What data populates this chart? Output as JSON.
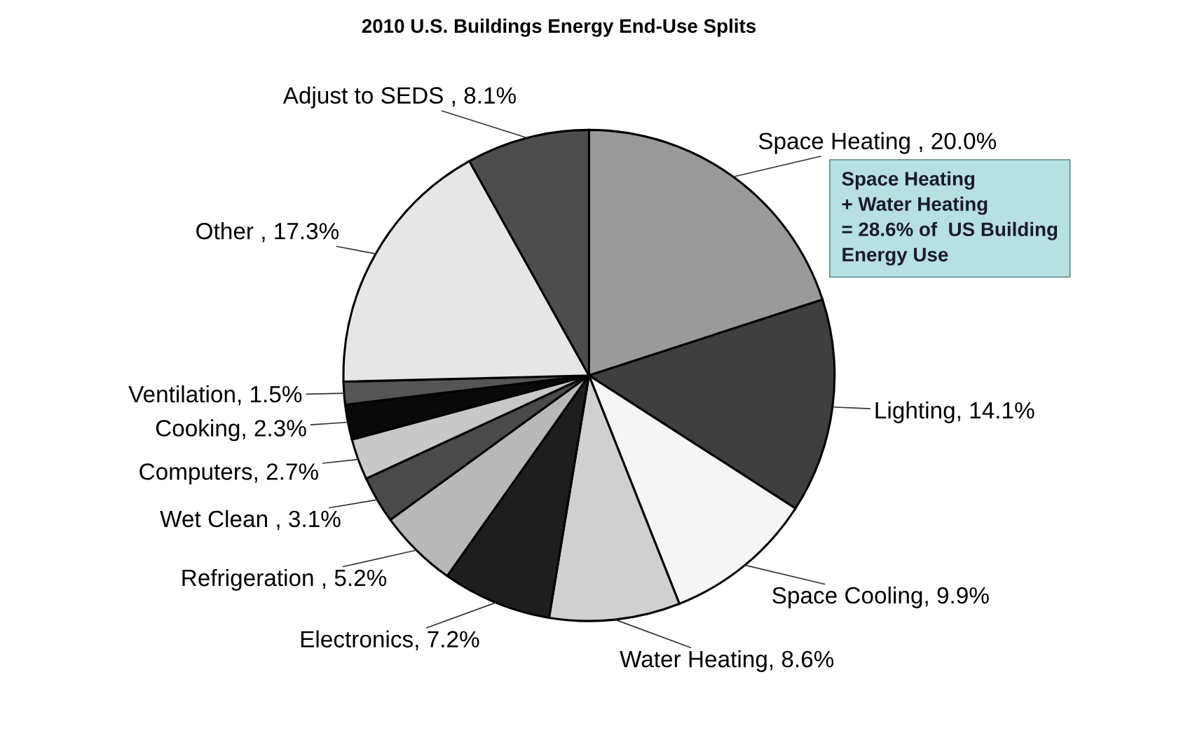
{
  "chart_data": {
    "type": "pie",
    "title": "2010 U.S. Buildings Energy End-Use Splits",
    "categories": [
      "Space Heating , 20.0%",
      "Lighting, 14.1%",
      "Space Cooling, 9.9%",
      "Water Heating, 8.6%",
      "Electronics, 7.2%",
      "Refrigeration , 5.2%",
      "Wet Clean , 3.1%",
      "Computers, 2.7%",
      "Cooking, 2.3%",
      "Ventilation, 1.5%",
      "Other , 17.3%",
      "Adjust to SEDS , 8.1%"
    ],
    "values": [
      20.0,
      14.1,
      9.9,
      8.6,
      7.2,
      5.2,
      3.1,
      2.7,
      2.3,
      1.5,
      17.3,
      8.1
    ],
    "colors": [
      "#9a9a9a",
      "#3f3f3f",
      "#f5f5f5",
      "#d0d0d0",
      "#1e1e1e",
      "#b8b8b8",
      "#4a4a4a",
      "#c8c8c8",
      "#080808",
      "#555555",
      "#e6e6e6",
      "#4d4d4d"
    ],
    "annotations": [
      "Space Heating\n+ Water Heating\n= 28.6% of  US Building\nEnergy Use"
    ]
  }
}
